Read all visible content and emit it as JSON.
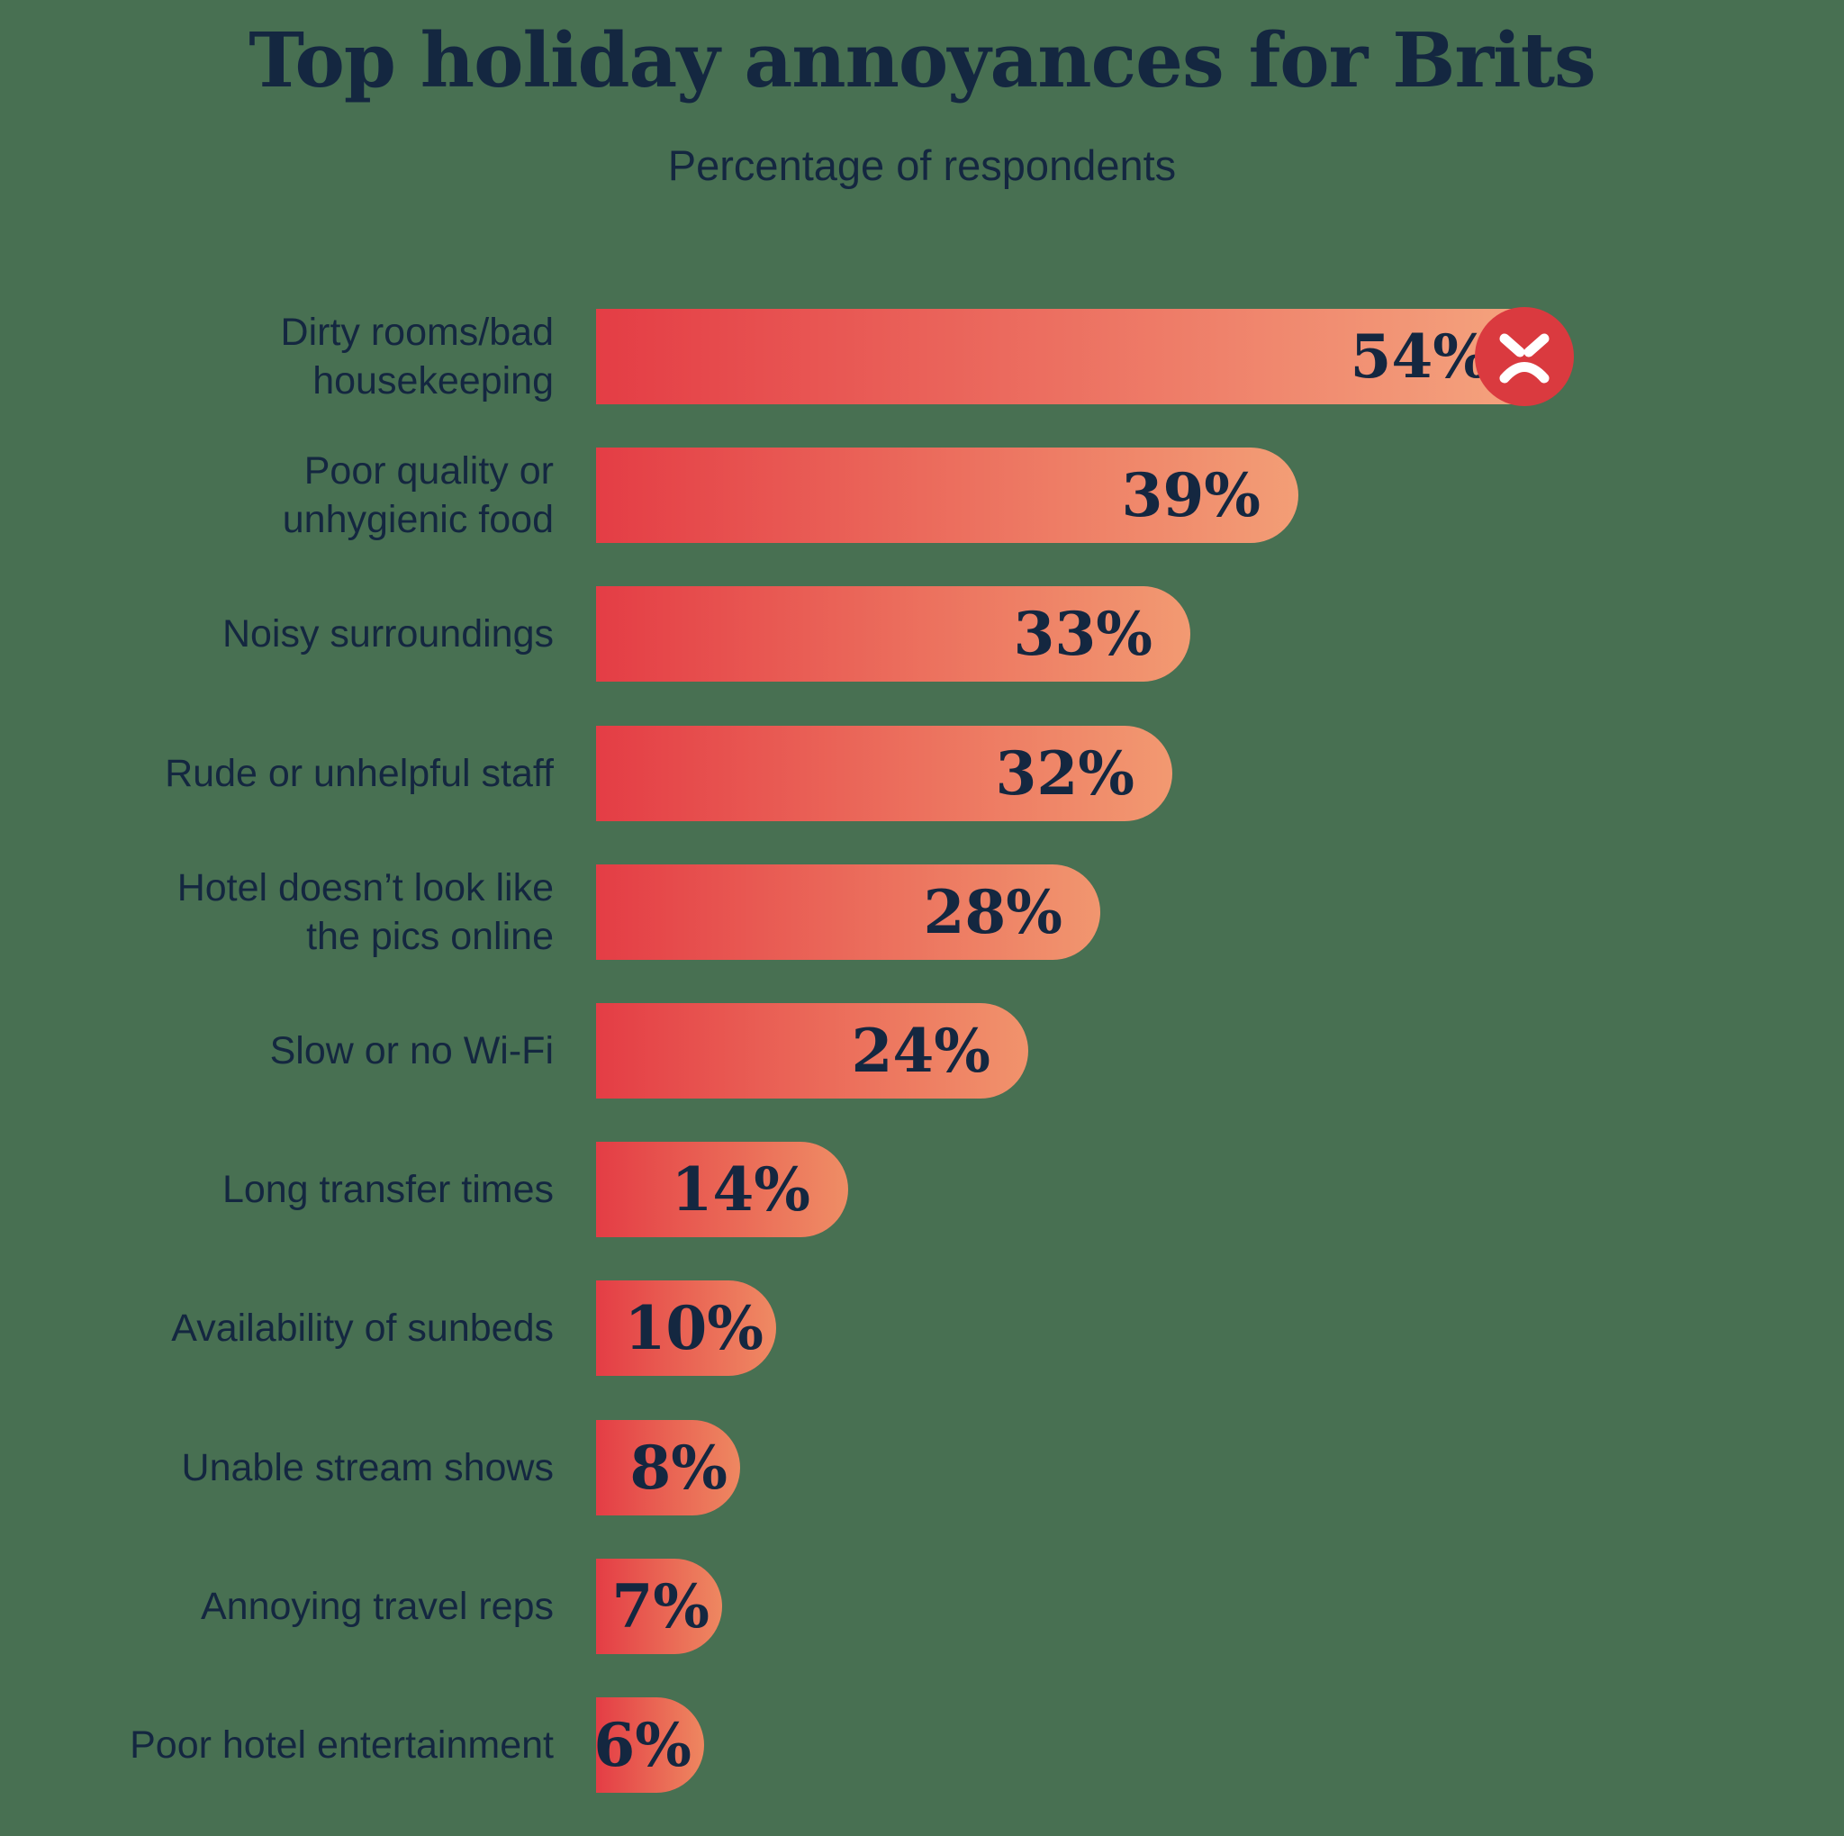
{
  "page": {
    "background": "#487052"
  },
  "header": {
    "title": "Top holiday annoyances for Brits",
    "subtitle": "Percentage of respondents"
  },
  "colors": {
    "text_navy": "#142740",
    "bar_gradient_start": "#E43D45",
    "bar_gradient_end_short": "#EE8760",
    "bar_gradient_end_long": "#F5A880",
    "face_circle_red": "#DA3A3F",
    "face_features_white": "#FFFFFF"
  },
  "chart_data": {
    "type": "bar",
    "orientation": "horizontal",
    "title": "Top holiday annoyances for Brits",
    "subtitle": "Percentage of respondents",
    "unit": "%",
    "value_axis_range": [
      0,
      54
    ],
    "grid": false,
    "legend": false,
    "categories": [
      "Dirty rooms/bad housekeeping",
      "Poor quality or unhygienic food",
      "Noisy surroundings",
      "Rude or unhelpful staff",
      "Hotel doesn’t look like the pics online",
      "Slow or no Wi-Fi",
      "Long transfer times",
      "Availability of sunbeds",
      "Unable stream shows",
      "Annoying travel reps",
      "Poor hotel entertainment"
    ],
    "values": [
      54,
      39,
      33,
      32,
      28,
      24,
      14,
      10,
      8,
      7,
      6
    ],
    "bars": [
      {
        "label": "Dirty rooms/bad\nhousekeeping",
        "value": 54,
        "value_label": "54%",
        "icon": "angry-face-icon"
      },
      {
        "label": "Poor quality or\nunhygienic food",
        "value": 39,
        "value_label": "39%"
      },
      {
        "label": "Noisy surroundings",
        "value": 33,
        "value_label": "33%"
      },
      {
        "label": "Rude or unhelpful staff",
        "value": 32,
        "value_label": "32%"
      },
      {
        "label": "Hotel doesn’t look like\nthe pics online",
        "value": 28,
        "value_label": "28%"
      },
      {
        "label": "Slow or no Wi-Fi",
        "value": 24,
        "value_label": "24%"
      },
      {
        "label": "Long transfer times",
        "value": 14,
        "value_label": "14%"
      },
      {
        "label": "Availability of sunbeds",
        "value": 10,
        "value_label": "10%"
      },
      {
        "label": "Unable stream shows",
        "value": 8,
        "value_label": "8%"
      },
      {
        "label": "Annoying travel reps",
        "value": 7,
        "value_label": "7%"
      },
      {
        "label": "Poor hotel entertainment",
        "value": 6,
        "value_label": "6%"
      }
    ]
  }
}
